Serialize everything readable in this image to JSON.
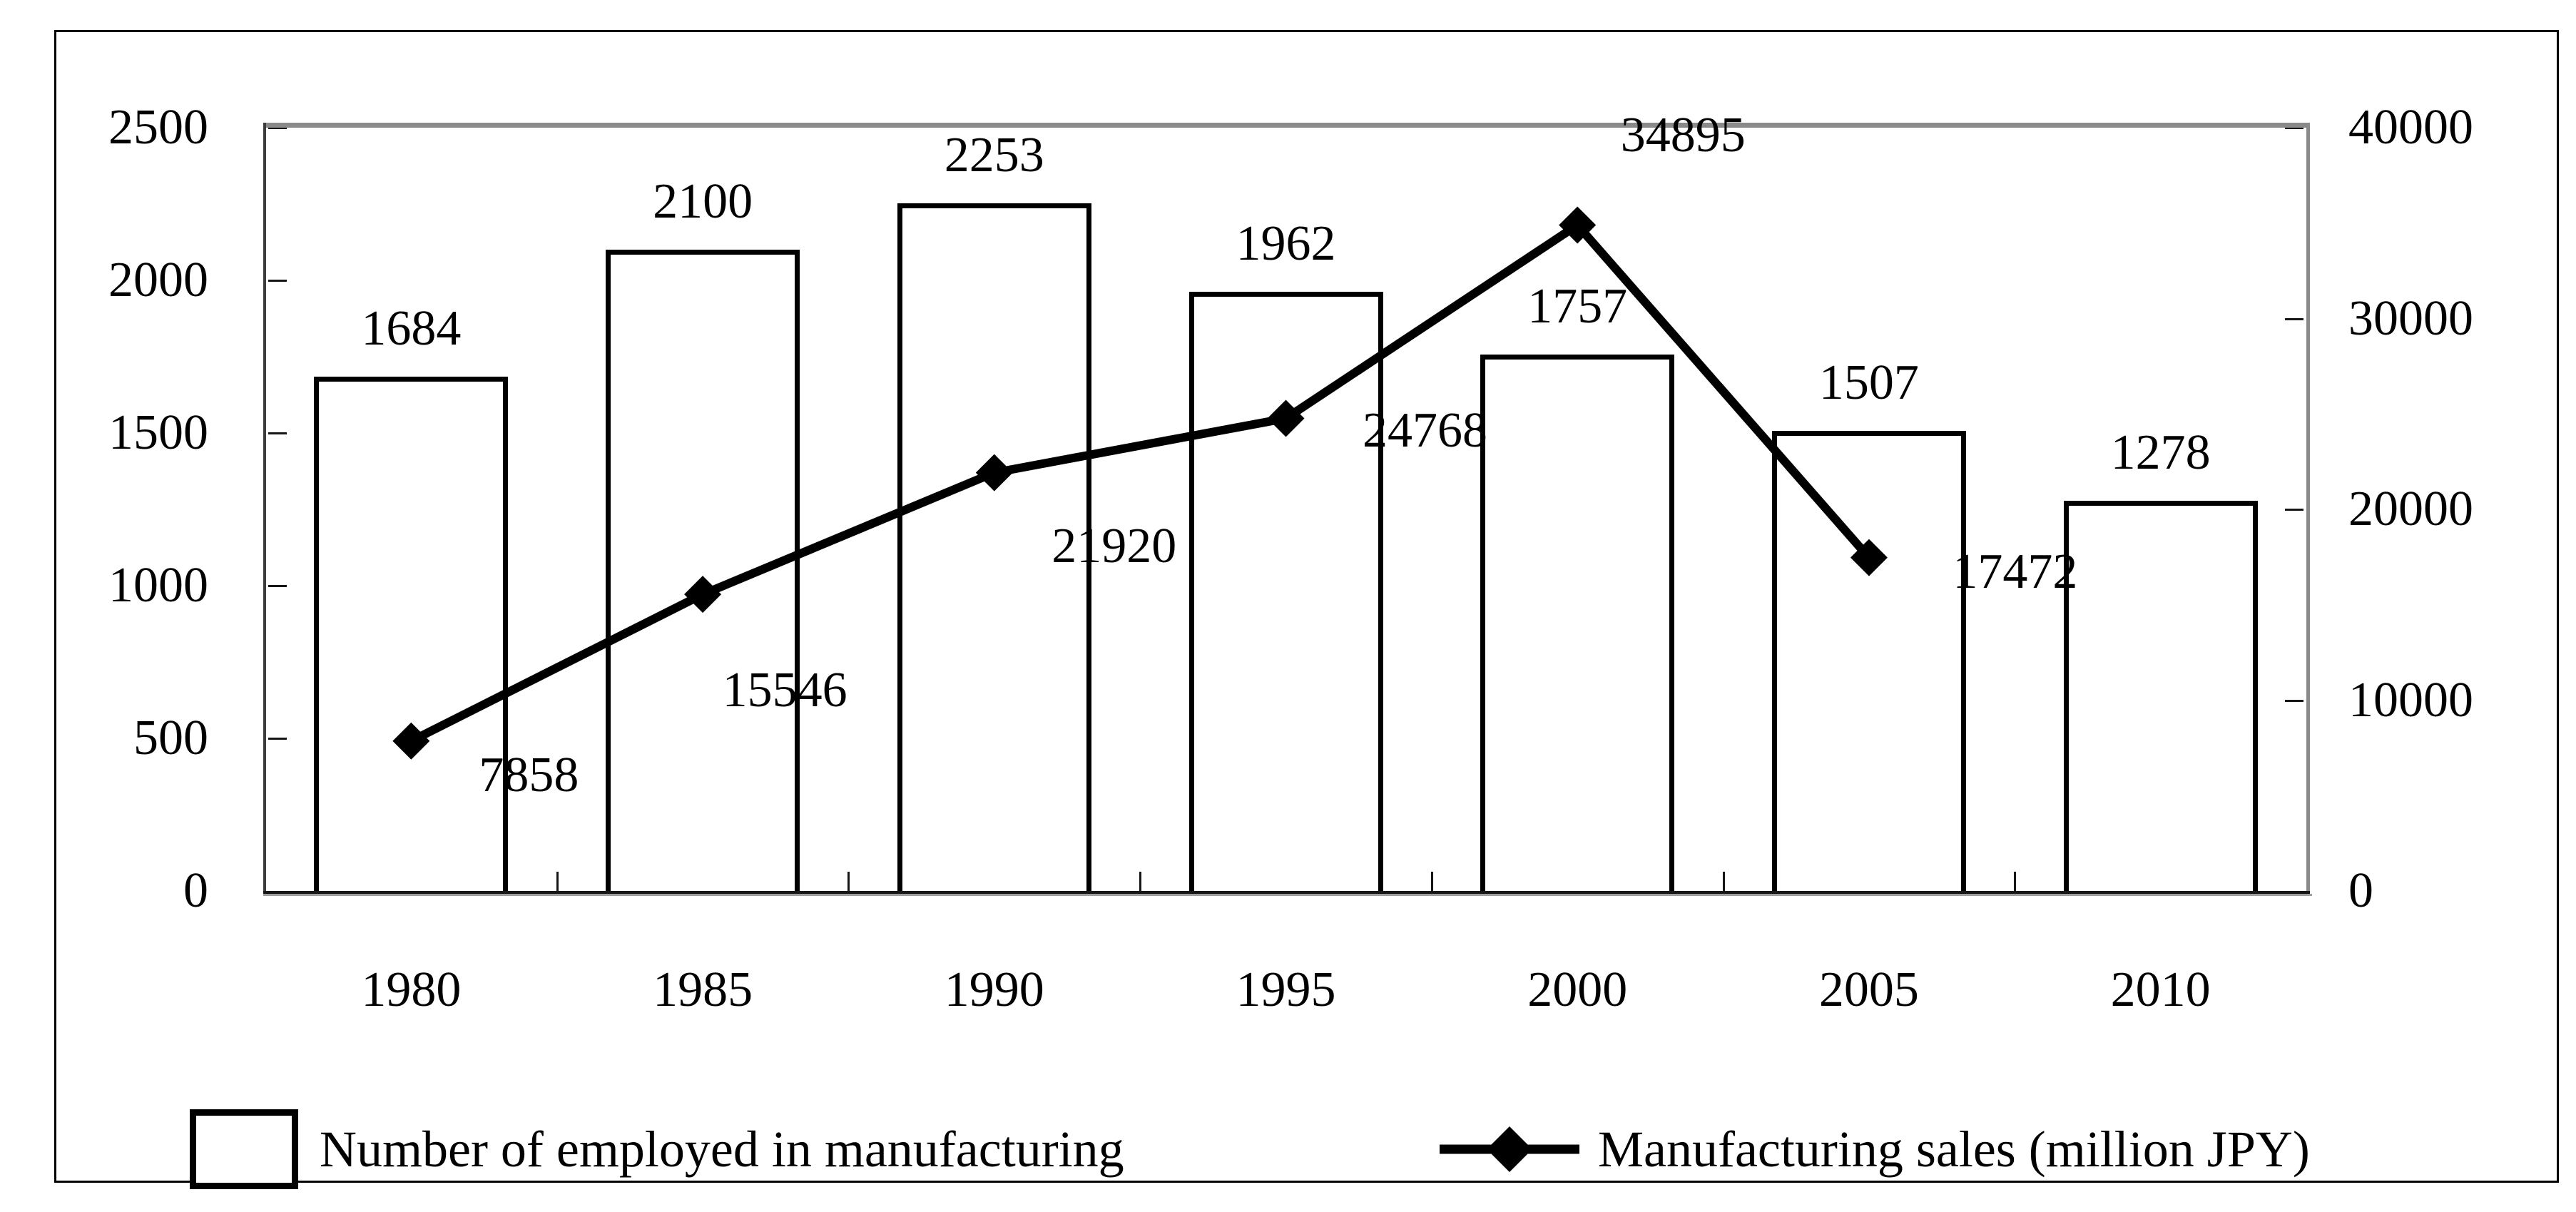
{
  "chart_data": {
    "type": "combo",
    "title": "",
    "categories": [
      "1980",
      "1985",
      "1990",
      "1995",
      "2000",
      "2005",
      "2010"
    ],
    "series": [
      {
        "name": "Number of employed in manufacturing",
        "type": "bar",
        "axis": "left",
        "values": [
          1684,
          2100,
          2253,
          1962,
          1757,
          1507,
          1278
        ],
        "fill": "#ffffff",
        "stroke": "#000000"
      },
      {
        "name": "Manufacturing sales (million JPY)",
        "type": "line",
        "axis": "right",
        "marker": "diamond",
        "color": "#000000",
        "values": [
          7858,
          15546,
          21920,
          24768,
          34895,
          17472,
          null
        ],
        "label_offsets": [
          {
            "dx": 165,
            "dy": 48
          },
          {
            "dx": 115,
            "dy": 135
          },
          {
            "dx": 168,
            "dy": 103
          },
          {
            "dx": 195,
            "dy": 18
          },
          {
            "dx": 148,
            "dy": -126
          },
          {
            "dx": 205,
            "dy": 20
          },
          null
        ]
      }
    ],
    "left_axis": {
      "min": 0,
      "max": 2500,
      "step": 500,
      "tick_labels": [
        "0",
        "500",
        "1000",
        "1500",
        "2000",
        "2500"
      ]
    },
    "right_axis": {
      "min": 0,
      "max": 40000,
      "step": 10000,
      "tick_labels": [
        "0",
        "10000",
        "20000",
        "30000",
        "40000"
      ]
    },
    "grid": false,
    "legend_position": "bottom",
    "plot_border_top_color": "#8a8a8a",
    "axis_color": "#161616",
    "text_color": "#000000",
    "background_color": "#ffffff"
  }
}
